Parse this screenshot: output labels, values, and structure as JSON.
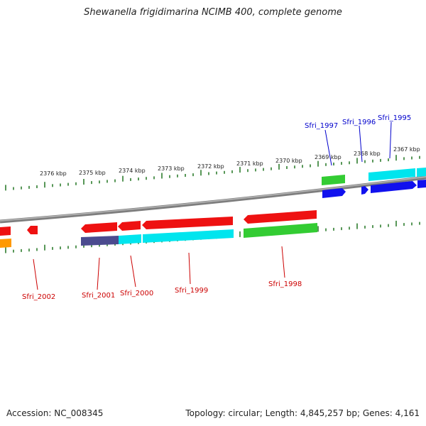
{
  "title": "Shewanella frigidimarina NCIMB 400, complete genome",
  "footer": {
    "accession": "Accession: NC_008345",
    "summary": "Topology: circular; Length: 4,845,257 bp; Genes: 4,161"
  },
  "scale_labels": [
    "2376 kbp",
    "2375 kbp",
    "2374 kbp",
    "2373 kbp",
    "2372 kbp",
    "2371 kbp",
    "2370 kbp",
    "2369 kbp",
    "2368 kbp",
    "2367 kbp"
  ],
  "gene_labels": {
    "forward": [
      "Sfri_1997",
      "Sfri_1996",
      "Sfri_1995"
    ],
    "reverse": [
      "Sfri_2002",
      "Sfri_2001",
      "Sfri_2000",
      "Sfri_1999",
      "Sfri_1998"
    ]
  },
  "colors": {
    "forward_label": "#0000cc",
    "reverse_label": "#cc0000",
    "tick": "#2e7d2e",
    "backbone": "#8a8a8a",
    "cds": "#ee1111",
    "cog_cyan": "#00e5ee",
    "cog_green": "#33cc33",
    "cog_blue": "#1111ee",
    "cog_purple": "#4b4b8f",
    "cog_orange": "#ff9900"
  }
}
